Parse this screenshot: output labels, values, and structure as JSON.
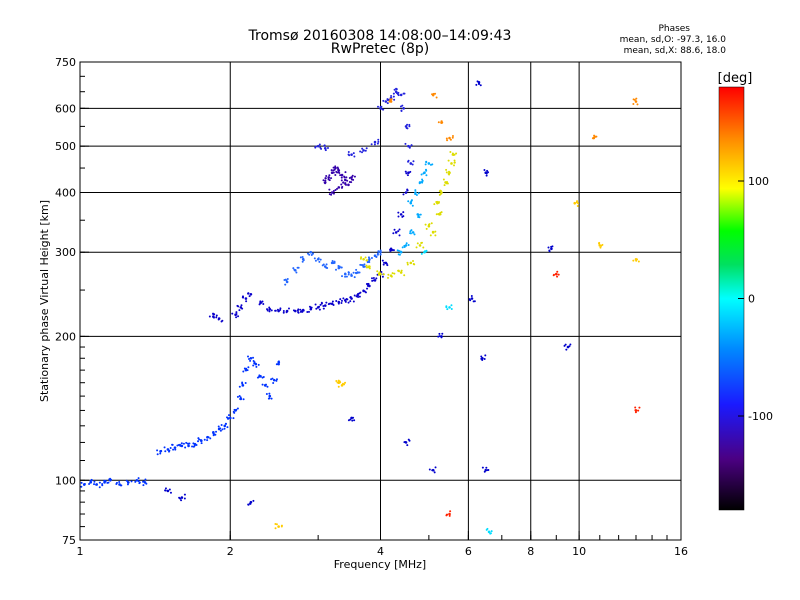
{
  "chart_data": {
    "type": "scatter",
    "title": "Tromsø 20160308 14:08:00–14:09:43",
    "subtitle": "RwPretec (8p)",
    "phases": {
      "heading": "Phases",
      "line_o": "mean, sd,O: -97.3, 16.0",
      "line_x": "mean, sd,X:  88.6, 18.0"
    },
    "xlabel": "Frequency [MHz]",
    "ylabel": "Stationary phase Virtual Height [km]",
    "x_scale": "log",
    "y_scale": "log",
    "xlim": [
      1,
      16
    ],
    "ylim": [
      75,
      750
    ],
    "x_ticks": [
      {
        "value": 1,
        "label": "1"
      },
      {
        "value": 2,
        "label": "2"
      },
      {
        "value": 4,
        "label": "4"
      },
      {
        "value": 6,
        "label": "6"
      },
      {
        "value": 8,
        "label": "8"
      },
      {
        "value": 10,
        "label": "10"
      },
      {
        "value": 16,
        "label": "16"
      }
    ],
    "y_ticks": [
      {
        "value": 75,
        "label": "75"
      },
      {
        "value": 100,
        "label": "100"
      },
      {
        "value": 200,
        "label": "200"
      },
      {
        "value": 300,
        "label": "300"
      },
      {
        "value": 400,
        "label": "400"
      },
      {
        "value": 500,
        "label": "500"
      },
      {
        "value": 600,
        "label": "600"
      },
      {
        "value": 750,
        "label": "750"
      }
    ],
    "x_gridlines": [
      2,
      4,
      6,
      8,
      10
    ],
    "y_gridlines": [
      100,
      200,
      300,
      400,
      500,
      600
    ],
    "colorbar": {
      "label": "[deg]",
      "range": [
        -180,
        180
      ],
      "ticks": [
        {
          "value": 100,
          "label": "100"
        },
        {
          "value": 0,
          "label": "0"
        },
        {
          "value": -100,
          "label": "-100"
        }
      ]
    },
    "series": [
      {
        "color": "#0033ff",
        "points": [
          [
            1.02,
            98
          ],
          [
            1.05,
            99
          ],
          [
            1.08,
            98
          ],
          [
            1.12,
            99
          ],
          [
            1.15,
            100
          ],
          [
            1.2,
            98
          ],
          [
            1.25,
            99
          ],
          [
            1.3,
            100
          ],
          [
            1.35,
            99
          ],
          [
            1.45,
            115
          ],
          [
            1.5,
            116
          ],
          [
            1.55,
            117
          ],
          [
            1.6,
            118
          ],
          [
            1.65,
            118
          ],
          [
            1.7,
            119
          ],
          [
            1.75,
            121
          ],
          [
            1.8,
            123
          ],
          [
            1.85,
            126
          ],
          [
            1.9,
            128
          ],
          [
            1.95,
            130
          ],
          [
            2.0,
            135
          ],
          [
            2.05,
            140
          ],
          [
            2.1,
            148
          ],
          [
            2.12,
            158
          ],
          [
            2.15,
            170
          ],
          [
            2.2,
            180
          ],
          [
            2.25,
            175
          ],
          [
            2.3,
            165
          ],
          [
            2.35,
            158
          ],
          [
            2.4,
            150
          ],
          [
            2.45,
            162
          ],
          [
            2.5,
            175
          ]
        ]
      },
      {
        "color": "#0a00cc",
        "points": [
          [
            1.85,
            220
          ],
          [
            1.9,
            218
          ],
          [
            2.05,
            222
          ],
          [
            2.1,
            230
          ],
          [
            2.15,
            240
          ],
          [
            2.2,
            245
          ],
          [
            2.3,
            235
          ],
          [
            2.4,
            228
          ],
          [
            2.5,
            226
          ],
          [
            2.6,
            226
          ],
          [
            2.7,
            226
          ],
          [
            2.8,
            227
          ],
          [
            2.9,
            228
          ],
          [
            3.0,
            230
          ],
          [
            3.1,
            232
          ],
          [
            3.2,
            234
          ],
          [
            3.3,
            236
          ],
          [
            3.4,
            238
          ],
          [
            3.5,
            240
          ],
          [
            3.6,
            244
          ],
          [
            3.7,
            249
          ],
          [
            3.8,
            255
          ],
          [
            3.9,
            262
          ],
          [
            4.0,
            270
          ],
          [
            4.1,
            285
          ],
          [
            4.2,
            305
          ],
          [
            4.3,
            330
          ],
          [
            4.4,
            360
          ],
          [
            4.5,
            400
          ],
          [
            4.55,
            440
          ]
        ]
      },
      {
        "color": "#2266ff",
        "points": [
          [
            2.6,
            260
          ],
          [
            2.7,
            275
          ],
          [
            2.8,
            290
          ],
          [
            2.9,
            300
          ],
          [
            3.0,
            290
          ],
          [
            3.1,
            280
          ],
          [
            3.2,
            285
          ],
          [
            3.3,
            278
          ],
          [
            3.4,
            270
          ],
          [
            3.5,
            268
          ],
          [
            3.6,
            272
          ],
          [
            3.7,
            280
          ],
          [
            3.8,
            290
          ],
          [
            3.9,
            295
          ],
          [
            4.0,
            300
          ]
        ]
      },
      {
        "color": "#3300aa",
        "points": [
          [
            3.1,
            420
          ],
          [
            3.15,
            430
          ],
          [
            3.2,
            440
          ],
          [
            3.25,
            450
          ],
          [
            3.3,
            445
          ],
          [
            3.35,
            435
          ],
          [
            3.4,
            425
          ],
          [
            3.45,
            415
          ],
          [
            3.5,
            430
          ],
          [
            3.3,
            410
          ],
          [
            3.2,
            400
          ]
        ]
      },
      {
        "color": "#2222dd",
        "points": [
          [
            3.0,
            500
          ],
          [
            3.1,
            495
          ],
          [
            3.5,
            480
          ],
          [
            3.7,
            490
          ],
          [
            3.9,
            510
          ],
          [
            4.0,
            600
          ],
          [
            4.1,
            620
          ],
          [
            4.2,
            630
          ],
          [
            4.3,
            650
          ],
          [
            4.4,
            640
          ],
          [
            4.45,
            600
          ],
          [
            4.5,
            550
          ],
          [
            4.55,
            500
          ],
          [
            4.6,
            460
          ]
        ]
      },
      {
        "color": "#00aaff",
        "points": [
          [
            4.6,
            380
          ],
          [
            4.7,
            400
          ],
          [
            4.8,
            420
          ],
          [
            4.9,
            440
          ],
          [
            5.0,
            460
          ],
          [
            4.75,
            360
          ],
          [
            4.65,
            330
          ],
          [
            4.5,
            310
          ],
          [
            4.4,
            300
          ]
        ]
      },
      {
        "color": "#dddd00",
        "points": [
          [
            4.0,
            270
          ],
          [
            4.2,
            268
          ],
          [
            4.4,
            272
          ],
          [
            4.6,
            285
          ],
          [
            4.8,
            310
          ],
          [
            5.0,
            340
          ],
          [
            5.2,
            380
          ],
          [
            5.4,
            420
          ],
          [
            5.5,
            440
          ],
          [
            5.55,
            460
          ],
          [
            5.6,
            480
          ],
          [
            5.3,
            400
          ],
          [
            5.25,
            360
          ],
          [
            5.1,
            330
          ],
          [
            3.8,
            280
          ],
          [
            3.7,
            290
          ]
        ]
      },
      {
        "color": "#ff8800",
        "points": [
          [
            4.2,
            620
          ],
          [
            5.1,
            640
          ],
          [
            5.3,
            560
          ],
          [
            5.5,
            520
          ],
          [
            10.7,
            520
          ],
          [
            13.0,
            620
          ]
        ]
      },
      {
        "color": "#ff2200",
        "points": [
          [
            5.5,
            85
          ],
          [
            9.0,
            270
          ],
          [
            13.0,
            140
          ]
        ]
      },
      {
        "color": "#ffcc00",
        "points": [
          [
            3.3,
            160
          ],
          [
            3.35,
            158
          ],
          [
            2.5,
            80
          ],
          [
            9.8,
            380
          ],
          [
            11.0,
            310
          ],
          [
            13.0,
            290
          ]
        ]
      },
      {
        "color": "#00ddff",
        "points": [
          [
            6.6,
            78
          ],
          [
            5.5,
            230
          ],
          [
            4.9,
            300
          ]
        ]
      },
      {
        "color": "#0000cc",
        "points": [
          [
            6.1,
            240
          ],
          [
            5.3,
            200
          ],
          [
            6.4,
            180
          ],
          [
            6.5,
            105
          ],
          [
            5.1,
            105
          ],
          [
            4.5,
            120
          ],
          [
            3.5,
            135
          ],
          [
            2.2,
            90
          ],
          [
            1.5,
            95
          ],
          [
            1.6,
            92
          ],
          [
            6.3,
            680
          ],
          [
            6.5,
            440
          ],
          [
            9.5,
            190
          ],
          [
            8.8,
            305
          ]
        ]
      }
    ]
  }
}
